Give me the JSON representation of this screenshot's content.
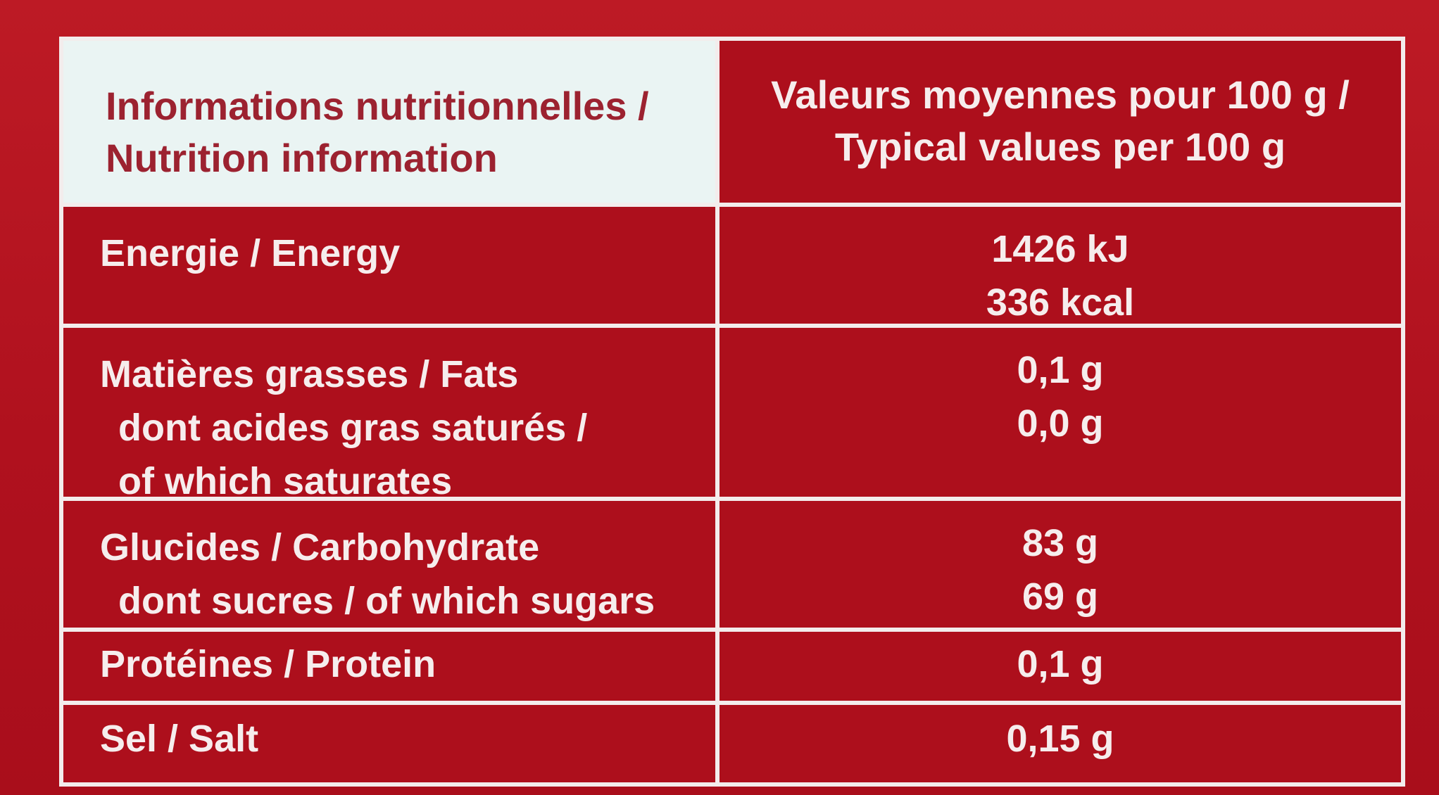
{
  "header": {
    "label_line1": "Informations nutritionnelles /",
    "label_line2": "Nutrition information",
    "value_line1": "Valeurs moyennes pour 100 g /",
    "value_line2": "Typical values per 100 g"
  },
  "rows": [
    {
      "label": "Energie / Energy",
      "values": [
        "1426 kJ",
        "336 kcal"
      ]
    },
    {
      "label": "Matières grasses / Fats",
      "sub_labels": [
        "dont acides gras saturés /",
        "of which saturates"
      ],
      "values": [
        "0,1 g",
        "0,0 g"
      ]
    },
    {
      "label": "Glucides / Carbohydrate",
      "sub_labels": [
        "dont sucres / of which sugars"
      ],
      "values": [
        "83 g",
        "69 g"
      ]
    },
    {
      "label": "Protéines / Protein",
      "values": [
        "0,1 g"
      ]
    },
    {
      "label": "Sel / Salt",
      "values": [
        "0,15 g"
      ]
    }
  ],
  "colors": {
    "background": "#b2121f",
    "header_background": "#eaf4f3",
    "header_text": "#9c2230",
    "text": "#f6eded",
    "border": "#f3ecec"
  }
}
